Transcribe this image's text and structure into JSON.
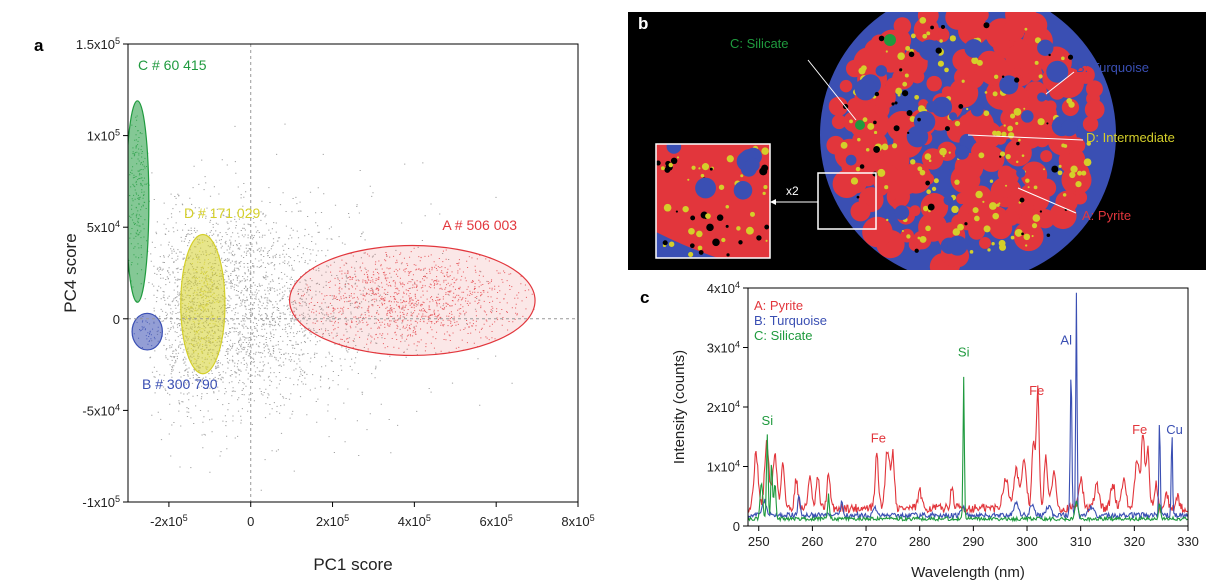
{
  "panels": {
    "a_letter": "a",
    "b_letter": "b",
    "c_letter": "c"
  },
  "colors": {
    "pyrite": "#e2363c",
    "turquoise": "#3a4fb3",
    "silicate": "#1f9a3e",
    "intermediate": "#d4cf2a",
    "cloud": "#333333"
  },
  "chart_data": [
    {
      "type": "scatter",
      "title": "",
      "xlabel": "PC1 score",
      "ylabel": "PC4 score",
      "xlim": [
        -300000,
        800000
      ],
      "ylim": [
        -100000,
        150000
      ],
      "x_ticks": [
        {
          "value": -200000,
          "label": "-2x10",
          "exp": "5"
        },
        {
          "value": 0,
          "label": "0",
          "exp": ""
        },
        {
          "value": 200000,
          "label": "2x10",
          "exp": "5"
        },
        {
          "value": 400000,
          "label": "4x10",
          "exp": "5"
        },
        {
          "value": 600000,
          "label": "6x10",
          "exp": "5"
        },
        {
          "value": 800000,
          "label": "8x10",
          "exp": "5"
        }
      ],
      "y_ticks": [
        {
          "value": -100000,
          "label": "-1x10",
          "exp": "5"
        },
        {
          "value": -50000,
          "label": "-5x10",
          "exp": "4"
        },
        {
          "value": 0,
          "label": "0",
          "exp": ""
        },
        {
          "value": 50000,
          "label": "5x10",
          "exp": "4"
        },
        {
          "value": 100000,
          "label": "1x10",
          "exp": "5"
        },
        {
          "value": 150000,
          "label": "1.5x10",
          "exp": "5"
        }
      ],
      "clusters": [
        {
          "label": "A # 506 003",
          "color": "#e2363c",
          "center": [
            395000,
            10000
          ],
          "radius": [
            300000,
            30000
          ]
        },
        {
          "label": "B # 300 790",
          "color": "#3a4fb3",
          "center": [
            -253000,
            -7000
          ],
          "radius": [
            37000,
            10000
          ]
        },
        {
          "label": "C # 60 415",
          "color": "#1f9a3e",
          "center": [
            -277000,
            64000
          ],
          "radius": [
            28000,
            55000
          ]
        },
        {
          "label": "D # 171 029",
          "color": "#d4cf2a",
          "center": [
            -117000,
            8000
          ],
          "radius": [
            54000,
            38000
          ]
        }
      ],
      "grid": false,
      "zero_lines": true
    },
    {
      "type": "line",
      "title": "",
      "xlabel": "Wavelength (nm)",
      "ylabel": "Intensity (counts)",
      "xlim": [
        248,
        330
      ],
      "ylim": [
        0,
        40000
      ],
      "x_ticks": [
        250,
        260,
        270,
        280,
        290,
        300,
        310,
        320,
        330
      ],
      "y_ticks": [
        {
          "value": 0,
          "label": "0",
          "exp": ""
        },
        {
          "value": 10000,
          "label": "1x10",
          "exp": "4"
        },
        {
          "value": 20000,
          "label": "2x10",
          "exp": "4"
        },
        {
          "value": 30000,
          "label": "3x10",
          "exp": "4"
        },
        {
          "value": 40000,
          "label": "4x10",
          "exp": "4"
        }
      ],
      "legend": [
        "A: Pyrite",
        "B: Turquoise",
        "C: Silicate"
      ],
      "legend_placement": "top-left",
      "series": [
        {
          "name": "A: Pyrite",
          "color": "#e2363c",
          "base": 3000,
          "peaks": [
            [
              249.5,
              9000,
              0.4
            ],
            [
              251.5,
              11000,
              0.4
            ],
            [
              253,
              9000,
              0.4
            ],
            [
              254.5,
              8000,
              0.3
            ],
            [
              257,
              5000,
              0.3
            ],
            [
              259.5,
              5500,
              0.3
            ],
            [
              261,
              5000,
              0.3
            ],
            [
              263,
              5500,
              0.3
            ],
            [
              272,
              9000,
              0.3
            ],
            [
              274,
              10000,
              0.4
            ],
            [
              275,
              9000,
              0.3
            ],
            [
              280,
              3000,
              0.3
            ],
            [
              286,
              3000,
              0.3
            ],
            [
              296,
              5000,
              0.5
            ],
            [
              298,
              6500,
              0.5
            ],
            [
              299.5,
              8000,
              0.4
            ],
            [
              301.2,
              11000,
              0.3
            ],
            [
              302,
              20000,
              0.25
            ],
            [
              303.5,
              9000,
              0.3
            ],
            [
              305,
              6000,
              0.4
            ],
            [
              310,
              5000,
              0.4
            ],
            [
              313,
              4000,
              0.4
            ],
            [
              316,
              4000,
              0.4
            ],
            [
              318,
              5000,
              0.4
            ],
            [
              320.5,
              8000,
              0.4
            ],
            [
              321.6,
              12500,
              0.3
            ],
            [
              322.5,
              10000,
              0.3
            ],
            [
              324,
              4000,
              0.3
            ],
            [
              326,
              2500,
              0.3
            ],
            [
              328,
              2000,
              0.3
            ]
          ]
        },
        {
          "name": "B: Turquoise",
          "color": "#3a4fb3",
          "base": 1800,
          "peaks": [
            [
              251,
              2500,
              0.4
            ],
            [
              257.5,
              3500,
              0.2
            ],
            [
              265.5,
              2500,
              0.2
            ],
            [
              271.5,
              1500,
              0.3
            ],
            [
              288,
              1500,
              0.3
            ],
            [
              298,
              2000,
              0.4
            ],
            [
              301,
              2000,
              0.4
            ],
            [
              304,
              1500,
              0.4
            ],
            [
              308.2,
              24500,
              0.15
            ],
            [
              309.2,
              37000,
              0.12
            ],
            [
              312,
              1500,
              0.4
            ],
            [
              324.7,
              16500,
              0.12
            ],
            [
              327,
              14000,
              0.12
            ]
          ]
        },
        {
          "name": "C: Silicate",
          "color": "#1f9a3e",
          "base": 1200,
          "peaks": [
            [
              250.5,
              6000,
              0.25
            ],
            [
              251.6,
              14500,
              0.15
            ],
            [
              252.4,
              9500,
              0.15
            ],
            [
              253,
              6000,
              0.2
            ],
            [
              263,
              4000,
              0.15
            ],
            [
              288.2,
              24000,
              0.12
            ],
            [
              309.2,
              3000,
              0.3
            ],
            [
              324.7,
              2500,
              0.2
            ]
          ]
        }
      ],
      "annotations": [
        {
          "text": "Si",
          "x": 251.6,
          "y": 17000,
          "color": "#1f9a3e"
        },
        {
          "text": "Fe",
          "x": 272.3,
          "y": 14000,
          "color": "#e2363c"
        },
        {
          "text": "Si",
          "x": 288.2,
          "y": 28500,
          "color": "#1f9a3e"
        },
        {
          "text": "Fe",
          "x": 301.8,
          "y": 22000,
          "color": "#e2363c"
        },
        {
          "text": "Al",
          "x": 307.3,
          "y": 30500,
          "color": "#3a4fb3"
        },
        {
          "text": "Fe",
          "x": 321,
          "y": 15500,
          "color": "#e2363c"
        },
        {
          "text": "Cu",
          "x": 327.5,
          "y": 15500,
          "color": "#3a4fb3"
        }
      ]
    }
  ],
  "map_labels": {
    "silicate": "C: Silicate",
    "turquoise": "B: Turquoise",
    "intermediate": "D: Intermediate",
    "pyrite": "A: Pyrite",
    "zoom": "x2"
  }
}
